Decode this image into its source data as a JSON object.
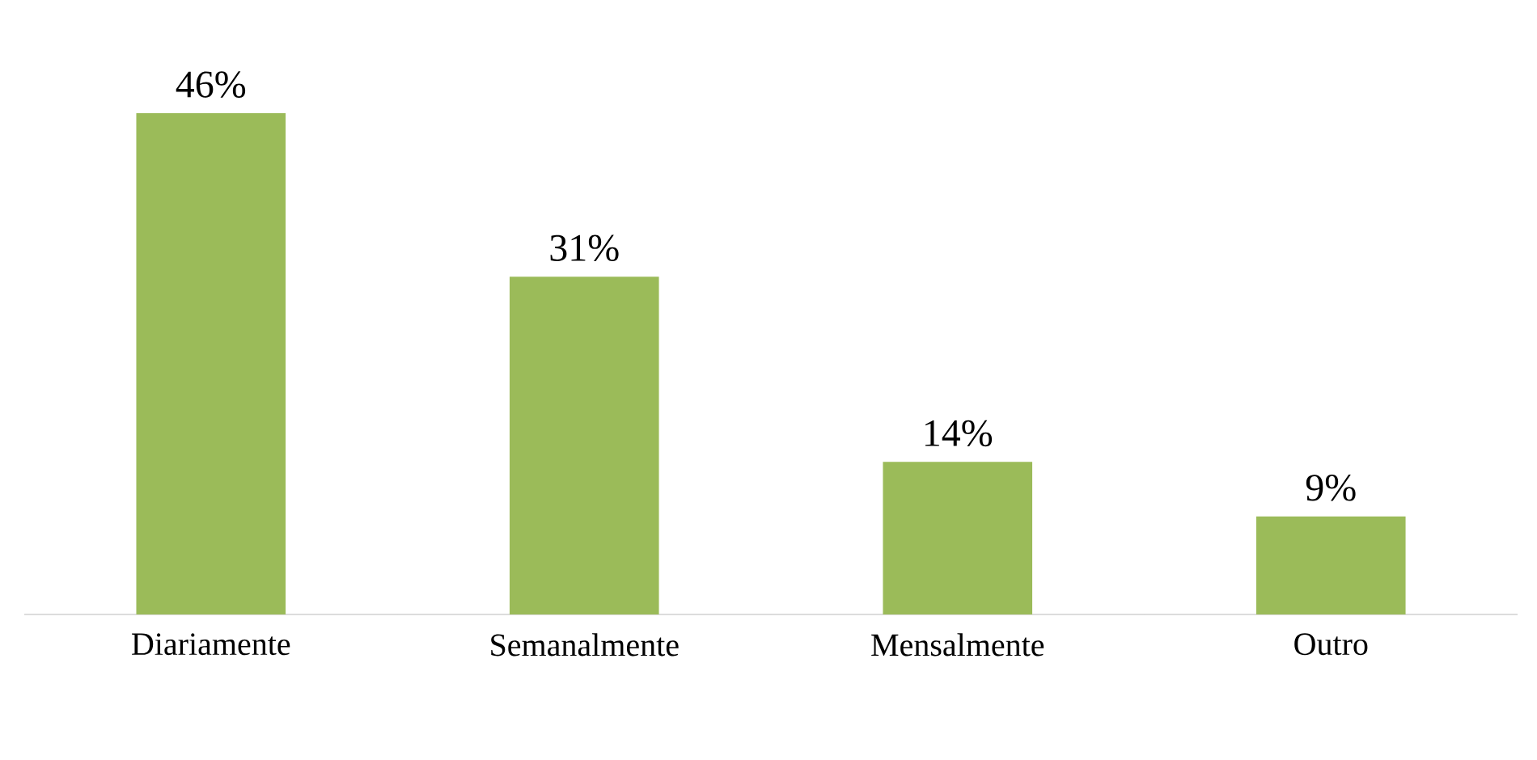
{
  "chart_data": {
    "type": "bar",
    "categories": [
      "Diariamente",
      "Semanalmente",
      "Mensalmente",
      "Outro"
    ],
    "values": [
      46,
      31,
      14,
      9
    ],
    "color": "#9bbb59",
    "data_labels": true,
    "value_labels": [
      "46%",
      "31%",
      "14%",
      "9%"
    ]
  }
}
